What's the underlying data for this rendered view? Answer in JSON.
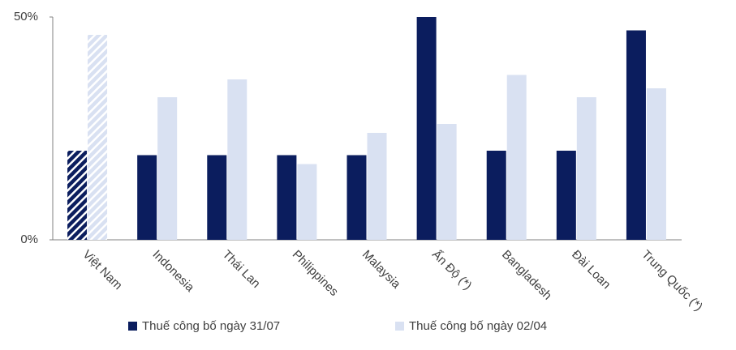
{
  "chart_data": {
    "type": "bar",
    "categories": [
      "Việt Nam",
      "Indonesia",
      "Thái Lan",
      "Philippines",
      "Malaysia",
      "Ấn Độ (*)",
      "Bangladesh",
      "Đài Loan",
      "Trung Quốc (*)"
    ],
    "series": [
      {
        "name": "Thuế công bố ngày 31/07",
        "color": "#0b1d5e",
        "values": [
          20,
          19,
          19,
          19,
          19,
          50,
          20,
          20,
          47
        ]
      },
      {
        "name": "Thuế công bố ngày 02/04",
        "color": "#d9e1f2",
        "values": [
          46,
          32,
          36,
          17,
          24,
          26,
          37,
          32,
          34
        ]
      }
    ],
    "hatched_categories": [
      0
    ],
    "ylim": [
      0,
      50
    ],
    "yticks": [
      {
        "value": 0,
        "label": "0%"
      },
      {
        "value": 50,
        "label": "50%"
      }
    ],
    "grid": false,
    "legend": "bottom"
  }
}
